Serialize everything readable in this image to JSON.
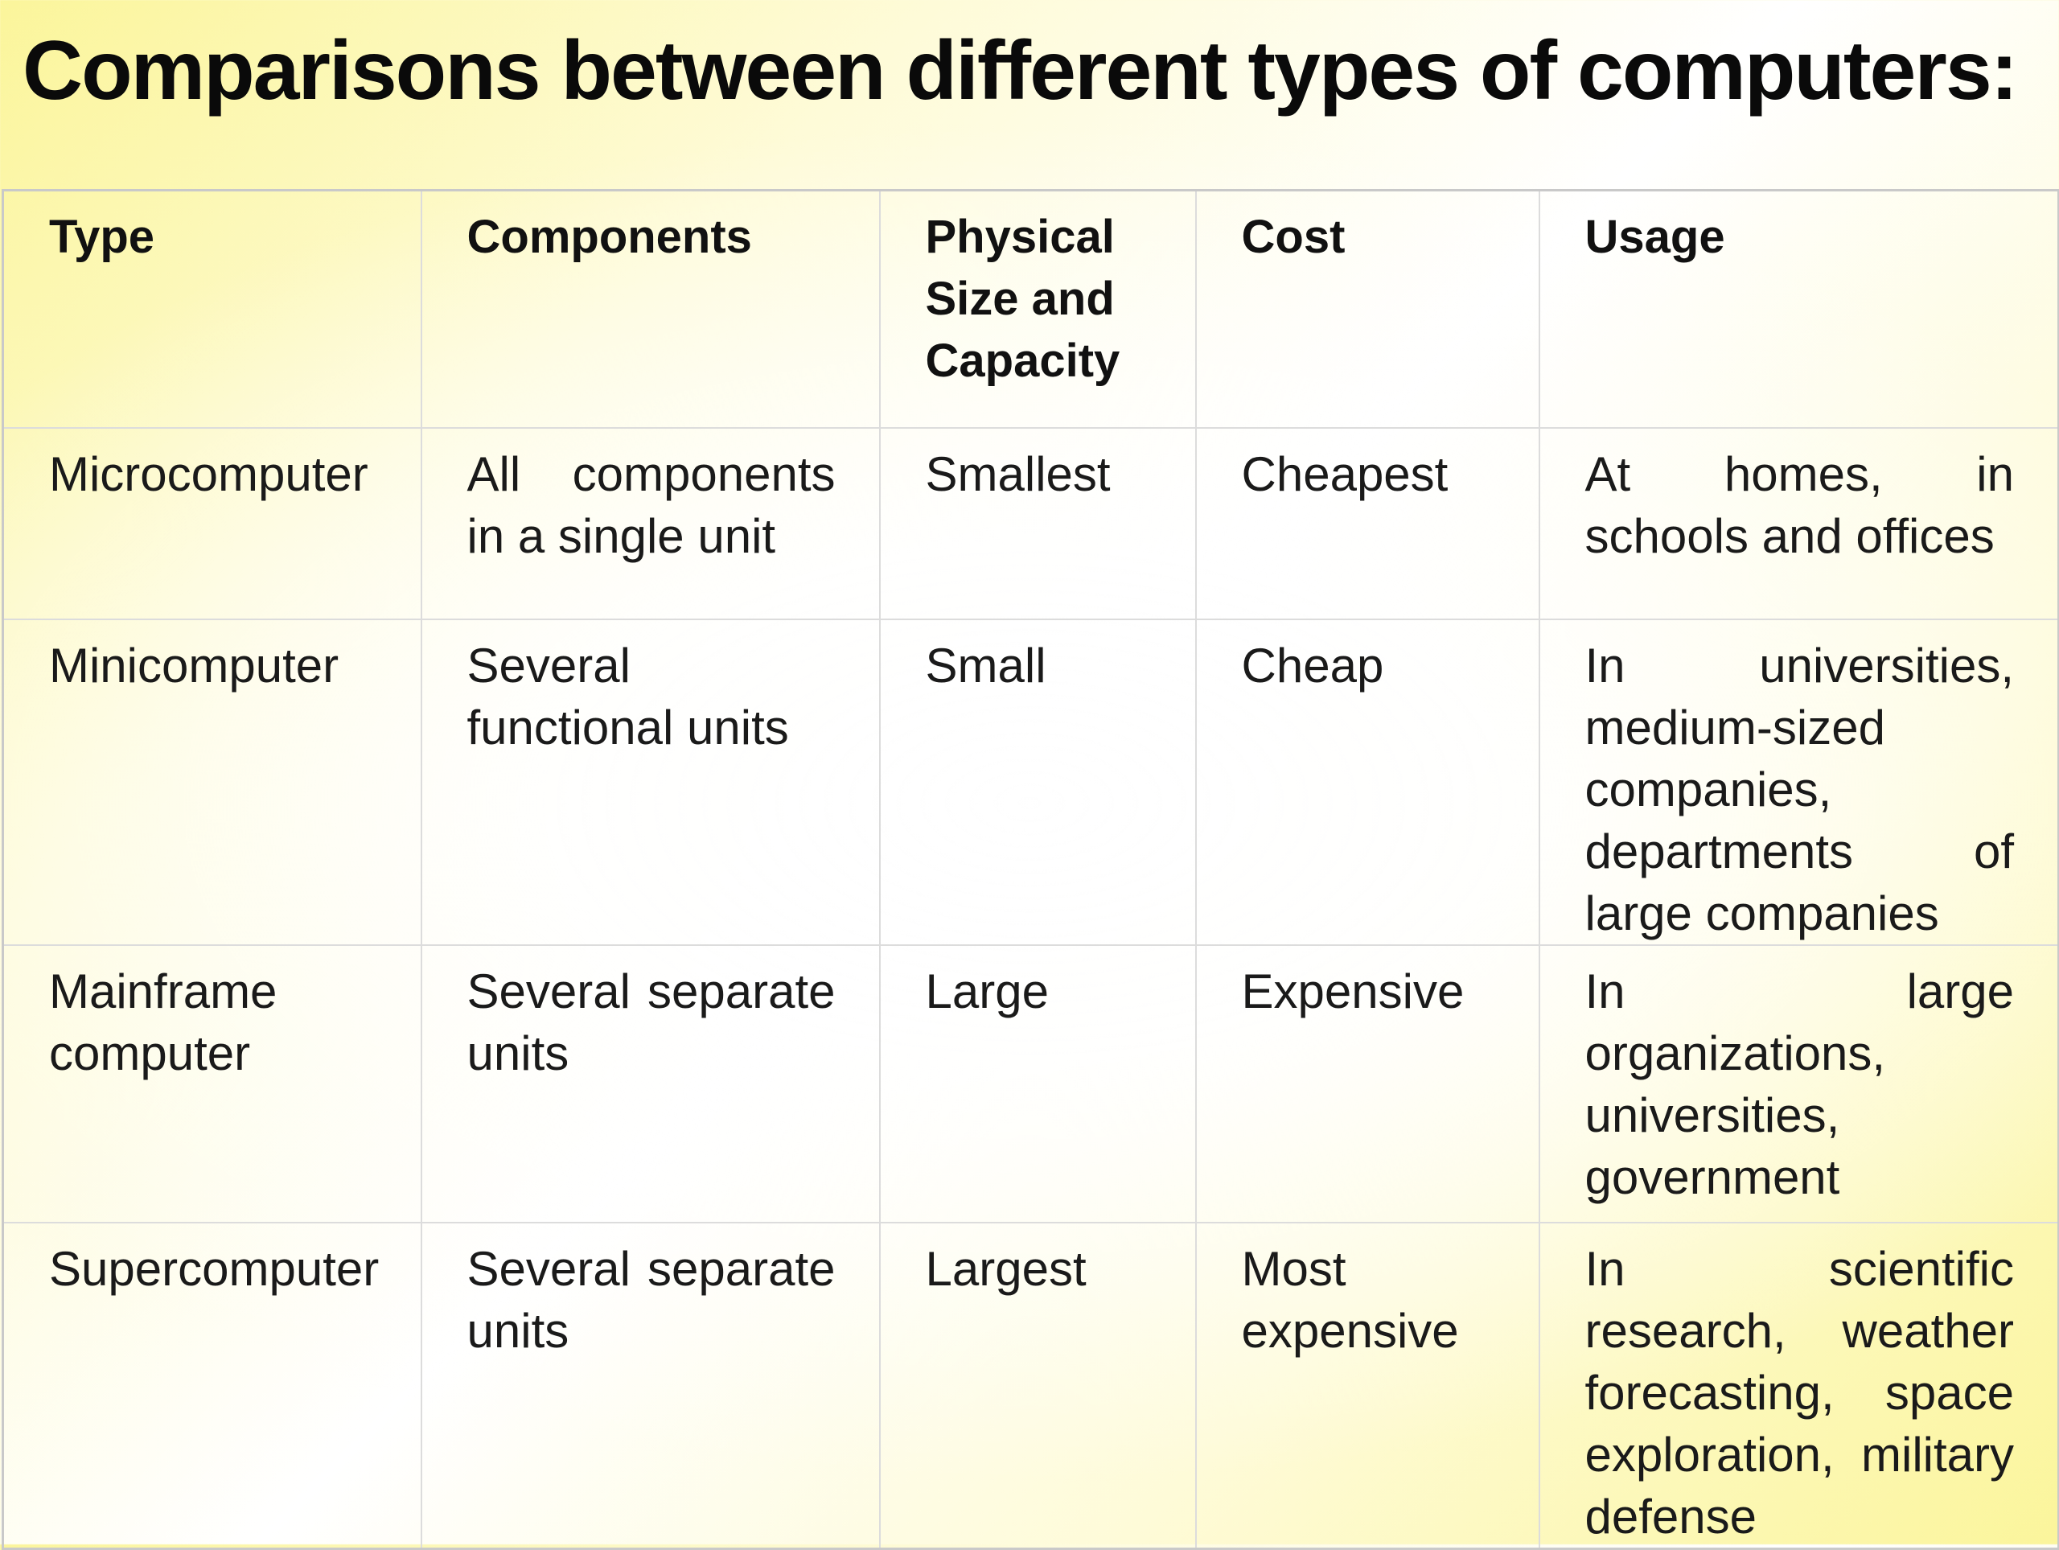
{
  "title": "Comparisons between different types of computers:",
  "table": {
    "headers": [
      "Type",
      "Components",
      "Physical Size and Capacity",
      "Cost",
      "Usage"
    ],
    "rows": [
      {
        "type": "Microcomputer",
        "components": "All components in a single unit",
        "size": "Smallest",
        "cost": "Cheapest",
        "usage": "At homes, in schools and offices"
      },
      {
        "type": "Minicomputer",
        "components": "Several functional units",
        "size": "Small",
        "cost": "Cheap",
        "usage": "In universities, medium-sized companies, departments of large companies"
      },
      {
        "type": "Mainframe computer",
        "components": "Several separate units",
        "size": "Large",
        "cost": "Expensive",
        "usage": "In large organizations, universities, government"
      },
      {
        "type": "Supercomputer",
        "components": "Several separate units",
        "size": "Largest",
        "cost": "Most expensive",
        "usage": "In scientific research, weather forecasting, space exploration, military defense"
      }
    ]
  }
}
